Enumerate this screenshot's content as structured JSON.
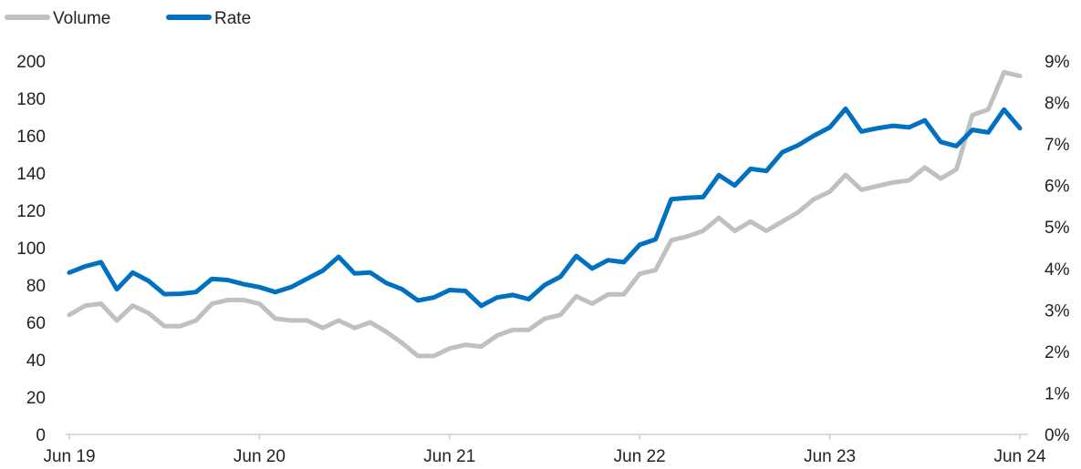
{
  "chart_data": {
    "type": "line",
    "title": "",
    "xlabel": "",
    "ylabel_left": "",
    "ylabel_right": "",
    "legend_position": "top-left",
    "grid": false,
    "x_ticks": [
      {
        "label": "Jun 19",
        "index": 0
      },
      {
        "label": "Jun 20",
        "index": 12
      },
      {
        "label": "Jun 21",
        "index": 24
      },
      {
        "label": "Jun 22",
        "index": 36
      },
      {
        "label": "Jun 23",
        "index": 48
      },
      {
        "label": "Jun 24",
        "index": 60
      }
    ],
    "y_left": {
      "min": 0,
      "max": 200,
      "ticks": [
        0,
        20,
        40,
        60,
        80,
        100,
        120,
        140,
        160,
        180,
        200
      ],
      "tick_labels": [
        "0",
        "20",
        "40",
        "60",
        "80",
        "100",
        "120",
        "140",
        "160",
        "180",
        "200"
      ]
    },
    "y_right": {
      "min": 0,
      "max": 9,
      "ticks": [
        0,
        1,
        2,
        3,
        4,
        5,
        6,
        7,
        8,
        9
      ],
      "tick_labels": [
        "0%",
        "1%",
        "2%",
        "3%",
        "4%",
        "5%",
        "6%",
        "7%",
        "8%",
        "9%"
      ]
    },
    "series": [
      {
        "name": "Volume",
        "axis": "left",
        "color": "#c0c0c0",
        "values": [
          64,
          69,
          70,
          61,
          69,
          65,
          58,
          58,
          61,
          70,
          72,
          72,
          70,
          62,
          61,
          61,
          57,
          61,
          57,
          60,
          55,
          49,
          42,
          42,
          46,
          48,
          47,
          53,
          56,
          56,
          62,
          64,
          74,
          70,
          75,
          75,
          86,
          88,
          104,
          106,
          109,
          116,
          109,
          114,
          109,
          114,
          119,
          126,
          130,
          139,
          131,
          133,
          135,
          136,
          143,
          137,
          142,
          171,
          174,
          194,
          192
        ]
      },
      {
        "name": "Rate",
        "axis": "right",
        "color": "#0070c0",
        "values": [
          3.9,
          4.05,
          4.15,
          3.5,
          3.9,
          3.7,
          3.38,
          3.39,
          3.43,
          3.75,
          3.72,
          3.62,
          3.55,
          3.43,
          3.55,
          3.75,
          3.95,
          4.28,
          3.88,
          3.9,
          3.65,
          3.5,
          3.23,
          3.3,
          3.48,
          3.46,
          3.1,
          3.3,
          3.36,
          3.26,
          3.6,
          3.8,
          4.3,
          4.0,
          4.2,
          4.15,
          4.57,
          4.7,
          5.67,
          5.7,
          5.72,
          6.25,
          6.0,
          6.4,
          6.35,
          6.8,
          6.97,
          7.2,
          7.4,
          7.85,
          7.3,
          7.38,
          7.44,
          7.4,
          7.57,
          7.05,
          6.95,
          7.34,
          7.28,
          7.83,
          7.38
        ]
      }
    ]
  }
}
